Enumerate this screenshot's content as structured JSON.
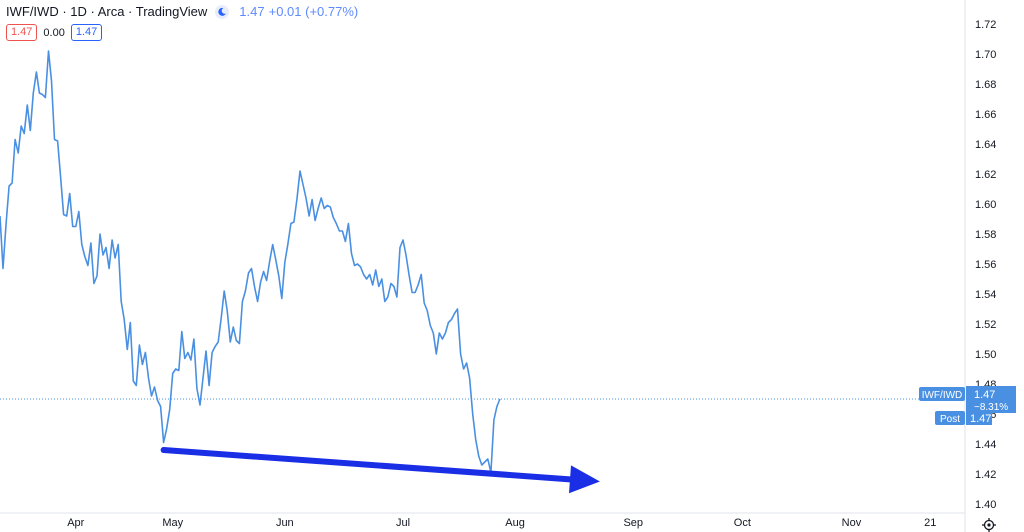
{
  "header": {
    "title": "IWF/IWD · 1D · Arca · TradingView",
    "last": "1.47",
    "change": "+0.01 (+0.77%)",
    "bid": "1.47",
    "spread": "0.00",
    "ask": "1.47"
  },
  "price_tag": {
    "symbol": "IWF/IWD",
    "price": "1.47",
    "change_pct": "−8.31%",
    "post_label": "Post",
    "post_price": "1.47"
  },
  "colors": {
    "line": "#4a90e2",
    "arrow": "#1a2ee6",
    "axis_text": "#131722",
    "tag_bg": "#4a90e2"
  },
  "chart_data": {
    "type": "line",
    "title": "IWF/IWD · 1D · Arca · TradingView",
    "xlabel": "",
    "ylabel": "",
    "ylim": [
      1.39,
      1.73
    ],
    "y_ticks": [
      1.4,
      1.42,
      1.44,
      1.46,
      1.48,
      1.5,
      1.52,
      1.54,
      1.56,
      1.58,
      1.6,
      1.62,
      1.64,
      1.66,
      1.68,
      1.7,
      1.72
    ],
    "x_tick_labels": [
      "Apr",
      "May",
      "Jun",
      "Jul",
      "Aug",
      "Sep",
      "Oct",
      "Nov",
      "21"
    ],
    "x_tick_index": [
      25,
      57,
      94,
      133,
      170,
      209,
      245,
      281,
      307
    ],
    "last_value": 1.47,
    "series": [
      {
        "name": "IWF/IWD",
        "values": [
          1.592,
          1.557,
          1.587,
          1.612,
          1.614,
          1.643,
          1.634,
          1.652,
          1.647,
          1.666,
          1.649,
          1.674,
          1.688,
          1.674,
          1.673,
          1.671,
          1.702,
          1.682,
          1.643,
          1.642,
          1.618,
          1.593,
          1.592,
          1.607,
          1.585,
          1.585,
          1.595,
          1.573,
          1.565,
          1.559,
          1.574,
          1.547,
          1.552,
          1.58,
          1.566,
          1.571,
          1.557,
          1.576,
          1.564,
          1.573,
          1.535,
          1.523,
          1.503,
          1.521,
          1.482,
          1.479,
          1.506,
          1.493,
          1.501,
          1.484,
          1.472,
          1.478,
          1.469,
          1.465,
          1.441,
          1.45,
          1.463,
          1.487,
          1.49,
          1.489,
          1.515,
          1.497,
          1.501,
          1.496,
          1.51,
          1.477,
          1.466,
          1.484,
          1.502,
          1.479,
          1.501,
          1.505,
          1.508,
          1.524,
          1.542,
          1.529,
          1.508,
          1.518,
          1.509,
          1.507,
          1.535,
          1.542,
          1.554,
          1.557,
          1.545,
          1.535,
          1.548,
          1.555,
          1.549,
          1.562,
          1.573,
          1.563,
          1.552,
          1.537,
          1.561,
          1.573,
          1.587,
          1.588,
          1.603,
          1.622,
          1.613,
          1.604,
          1.592,
          1.603,
          1.589,
          1.597,
          1.604,
          1.597,
          1.599,
          1.598,
          1.591,
          1.587,
          1.582,
          1.582,
          1.575,
          1.587,
          1.567,
          1.559,
          1.56,
          1.558,
          1.553,
          1.55,
          1.553,
          1.546,
          1.556,
          1.545,
          1.55,
          1.535,
          1.538,
          1.547,
          1.545,
          1.538,
          1.571,
          1.576,
          1.566,
          1.553,
          1.541,
          1.541,
          1.546,
          1.553,
          1.534,
          1.529,
          1.519,
          1.514,
          1.5,
          1.514,
          1.51,
          1.514,
          1.521,
          1.523,
          1.527,
          1.53,
          1.5,
          1.49,
          1.494,
          1.484,
          1.46,
          1.443,
          1.432,
          1.426,
          1.428,
          1.43,
          1.421,
          1.456,
          1.465,
          1.47
        ]
      }
    ],
    "annotations": [
      {
        "type": "arrow",
        "from": {
          "x_index": 54,
          "y": 1.436
        },
        "to": {
          "x_index": 198,
          "y": 1.415
        }
      }
    ]
  }
}
